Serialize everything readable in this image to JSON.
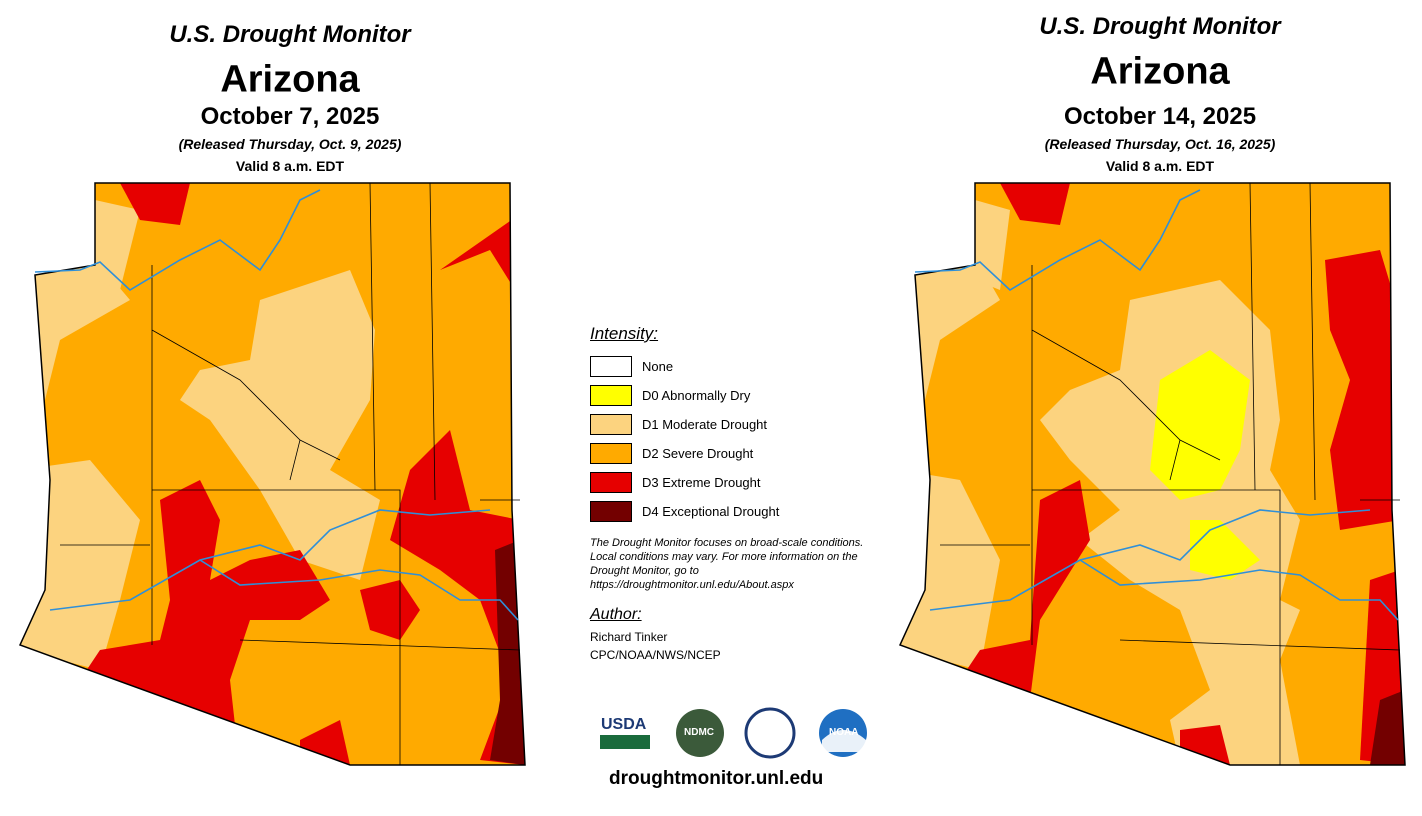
{
  "maps": [
    {
      "header": "U.S. Drought Monitor",
      "state": "Arizona",
      "date": "October 7, 2025",
      "released": "(Released Thursday, Oct. 9, 2025)",
      "valid": "Valid 8 a.m. EDT"
    },
    {
      "header": "U.S. Drought Monitor",
      "state": "Arizona",
      "date": "October 14, 2025",
      "released": "(Released Thursday, Oct. 16, 2025)",
      "valid": "Valid 8 a.m. EDT"
    }
  ],
  "legend": {
    "title": "Intensity:",
    "items": [
      {
        "label": "None",
        "color": "#ffffff"
      },
      {
        "label": "D0 Abnormally Dry",
        "color": "#ffff00"
      },
      {
        "label": "D1 Moderate Drought",
        "color": "#fcd37f"
      },
      {
        "label": "D2 Severe Drought",
        "color": "#ffaa00"
      },
      {
        "label": "D3 Extreme Drought",
        "color": "#e60000"
      },
      {
        "label": "D4 Exceptional Drought",
        "color": "#730000"
      }
    ]
  },
  "note": "The Drought Monitor focuses on broad-scale conditions. Local conditions may vary. For more information on the Drought Monitor, go to https://droughtmonitor.unl.edu/About.aspx",
  "author": {
    "title": "Author:",
    "name": "Richard Tinker",
    "org": "CPC/NOAA/NWS/NCEP"
  },
  "logos": [
    "USDA",
    "NDMC",
    "NOAA"
  ],
  "url": "droughtmonitor.unl.edu"
}
